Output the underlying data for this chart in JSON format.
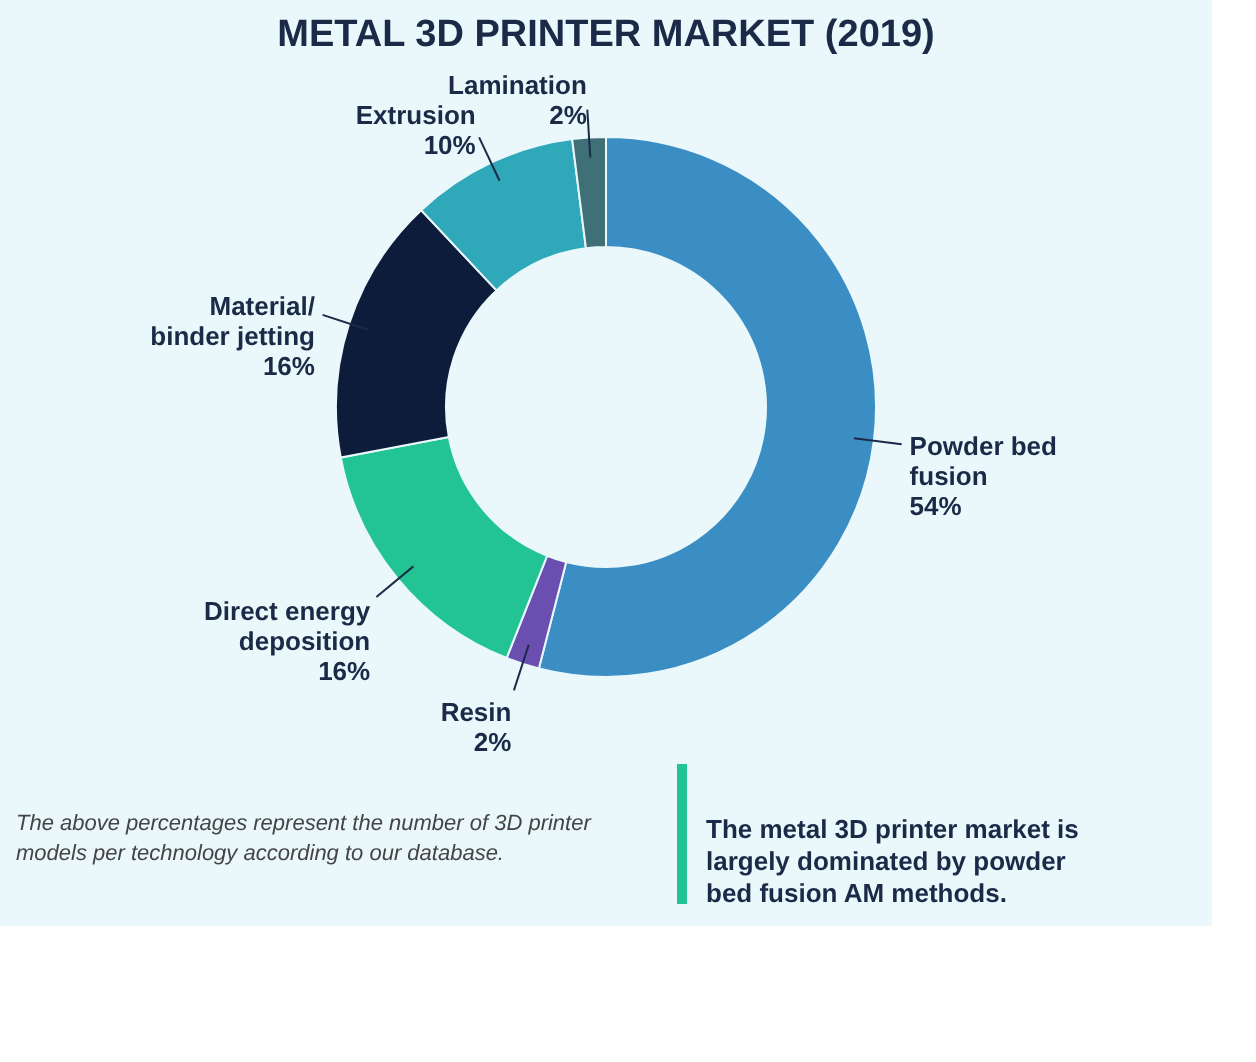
{
  "chart_data": {
    "type": "donut",
    "title": "METAL 3D PRINTER MARKET (2019)",
    "categories": [
      "Powder bed fusion",
      "Resin",
      "Direct energy deposition",
      "Material/ binder jetting",
      "Extrusion",
      "Lamination"
    ],
    "values": [
      54,
      2,
      16,
      16,
      10,
      2
    ],
    "value_labels": [
      "54%",
      "2%",
      "16%",
      "16%",
      "10%",
      "2%"
    ],
    "colors": [
      "#3b8ec4",
      "#6b4fb0",
      "#22c493",
      "#0e1c3c",
      "#2fa9ba",
      "#3f7078"
    ],
    "legend": false,
    "annotations": [
      "The above percentages represent the number of 3D printer models per technology according to our database.",
      "The metal 3D printer market is largely dominated by powder bed fusion AM methods."
    ]
  }
}
